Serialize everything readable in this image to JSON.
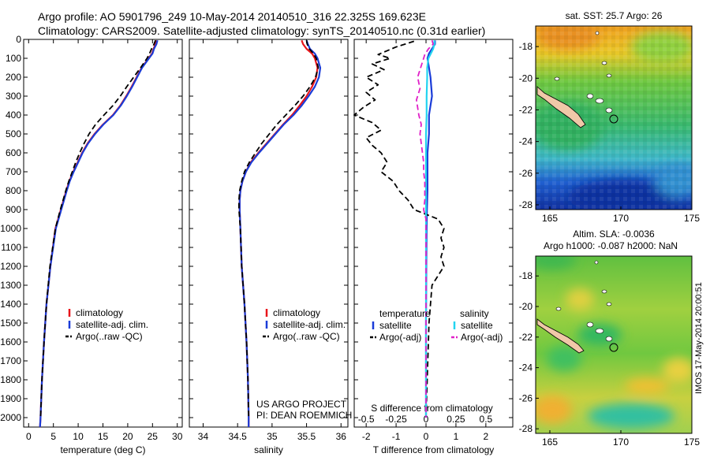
{
  "header": {
    "line1": "Argo profile: AO 5901796_249 10-May-2014 20140510_316 22.325S 169.623E",
    "line2": "Climatology: CARS2009. Satellite-adjusted climatology: synTS_20140510.nc (0.31d earlier)"
  },
  "depth_ticks": [
    "0",
    "100",
    "200",
    "300",
    "400",
    "500",
    "600",
    "700",
    "800",
    "900",
    "1000",
    "1100",
    "1200",
    "1300",
    "1400",
    "1500",
    "1600",
    "1700",
    "1800",
    "1900",
    "2000"
  ],
  "colors": {
    "climatology": "#e8141a",
    "satellite": "#1a3cd8",
    "argo": "#000000",
    "sat_salinity": "#22d4f0",
    "argo_salinity": "#e020c8"
  },
  "chart_data": [
    {
      "type": "line",
      "id": "temperature",
      "xlabel": "temperature (deg C)",
      "ylabel": "depth",
      "xlim": [
        -1,
        31
      ],
      "ylim": [
        2050,
        0
      ],
      "x_ticks": [
        "0",
        "5",
        "10",
        "15",
        "20",
        "25",
        "30"
      ],
      "legend": [
        "climatology",
        "satellite-adj. clim.",
        "Argo(..raw -QC)"
      ],
      "series": [
        {
          "name": "climatology",
          "style": "climatology",
          "depth": [
            5,
            25,
            50,
            75,
            100,
            150,
            200,
            250,
            300,
            350,
            400,
            450,
            500,
            550,
            600,
            650,
            700,
            750,
            800,
            900,
            1000,
            1200,
            1400,
            1600,
            1800,
            2000,
            2050
          ],
          "values": [
            25.8,
            25.6,
            25.2,
            24.9,
            24.2,
            22.8,
            21.8,
            20.8,
            19.7,
            18.5,
            17.0,
            15.0,
            13.3,
            11.9,
            10.8,
            9.9,
            9.0,
            8.2,
            7.6,
            6.5,
            5.4,
            4.4,
            3.6,
            3.1,
            2.7,
            2.4,
            2.3
          ]
        },
        {
          "name": "satellite-adj. clim.",
          "style": "satellite",
          "depth": [
            5,
            25,
            50,
            75,
            100,
            150,
            200,
            250,
            300,
            350,
            400,
            450,
            500,
            550,
            600,
            650,
            700,
            750,
            800,
            900,
            1000,
            1200,
            1400,
            1600,
            1800,
            2000,
            2050
          ],
          "values": [
            26.0,
            25.8,
            25.3,
            25.0,
            24.3,
            22.9,
            21.9,
            20.9,
            19.8,
            18.6,
            17.1,
            15.1,
            13.4,
            12.0,
            10.9,
            10.0,
            9.1,
            8.3,
            7.7,
            6.6,
            5.5,
            4.4,
            3.6,
            3.1,
            2.7,
            2.4,
            2.3
          ]
        },
        {
          "name": "Argo(..raw -QC)",
          "style": "argo",
          "depth": [
            5,
            25,
            50,
            75,
            100,
            150,
            200,
            250,
            300,
            350,
            400,
            450,
            500,
            550,
            600,
            650,
            700,
            750,
            800,
            900,
            1000,
            1200,
            1400,
            1600,
            1800,
            2000
          ],
          "values": [
            25.6,
            25.3,
            24.8,
            24.4,
            23.9,
            22.6,
            21.2,
            19.8,
            18.5,
            17.0,
            15.2,
            13.5,
            12.2,
            11.2,
            10.3,
            9.5,
            8.8,
            8.1,
            7.5,
            6.4,
            5.4,
            4.3,
            3.6,
            3.1,
            2.7,
            2.4
          ]
        }
      ]
    },
    {
      "type": "line",
      "id": "salinity",
      "xlabel": "salinity",
      "ylabel": "depth",
      "xlim": [
        33.8,
        36.1
      ],
      "ylim": [
        2050,
        0
      ],
      "x_ticks": [
        "34",
        "34.5",
        "35",
        "35.5",
        "36"
      ],
      "legend": [
        "climatology",
        "satellite-adj. clim.",
        "Argo(..raw -QC)"
      ],
      "annotations": [
        "US ARGO PROJECT",
        "PI: DEAN ROEMMICH"
      ],
      "series": [
        {
          "name": "climatology",
          "style": "climatology",
          "depth": [
            5,
            25,
            50,
            75,
            100,
            150,
            200,
            250,
            300,
            350,
            400,
            450,
            500,
            550,
            600,
            650,
            700,
            750,
            800,
            850,
            900,
            1000,
            1200,
            1400,
            1600,
            1800,
            2000,
            2050
          ],
          "values": [
            35.43,
            35.45,
            35.5,
            35.58,
            35.62,
            35.66,
            35.64,
            35.58,
            35.5,
            35.4,
            35.29,
            35.16,
            35.04,
            34.92,
            34.8,
            34.69,
            34.62,
            34.57,
            34.54,
            34.53,
            34.53,
            34.54,
            34.56,
            34.6,
            34.63,
            34.65,
            34.66,
            34.66
          ]
        },
        {
          "name": "satellite-adj. clim.",
          "style": "satellite",
          "depth": [
            5,
            25,
            50,
            75,
            100,
            150,
            200,
            250,
            300,
            350,
            400,
            450,
            500,
            550,
            600,
            650,
            700,
            750,
            800,
            850,
            900,
            1000,
            1200,
            1400,
            1600,
            1800,
            2000,
            2050
          ],
          "values": [
            35.5,
            35.52,
            35.55,
            35.62,
            35.66,
            35.7,
            35.68,
            35.62,
            35.53,
            35.43,
            35.31,
            35.17,
            35.05,
            34.93,
            34.81,
            34.7,
            34.62,
            34.57,
            34.54,
            34.53,
            34.53,
            34.54,
            34.56,
            34.6,
            34.63,
            34.65,
            34.66,
            34.66
          ]
        },
        {
          "name": "Argo(..raw -QC)",
          "style": "argo",
          "depth": [
            5,
            25,
            50,
            75,
            100,
            150,
            200,
            250,
            300,
            350,
            400,
            450,
            500,
            550,
            600,
            650,
            700,
            750,
            800,
            850,
            900,
            1000,
            1200,
            1400,
            1600,
            1800,
            2000
          ],
          "values": [
            35.5,
            35.51,
            35.54,
            35.6,
            35.64,
            35.67,
            35.63,
            35.55,
            35.45,
            35.33,
            35.2,
            35.07,
            34.96,
            34.85,
            34.76,
            34.67,
            34.6,
            34.56,
            34.53,
            34.52,
            34.52,
            34.54,
            34.56,
            34.6,
            34.63,
            34.65,
            34.66
          ]
        }
      ]
    },
    {
      "type": "line",
      "id": "difference",
      "xlabel": "T difference from climatology",
      "xlabel_top": "S difference from climatology",
      "ylabel": "depth",
      "xlim": [
        -2.4,
        2.9
      ],
      "ylim": [
        2050,
        0
      ],
      "x_ticks": [
        "-2",
        "-1",
        "0",
        "1",
        "2"
      ],
      "x_ticks_top": [
        "-0.5",
        "-0.25",
        "0",
        "0.25",
        "0.5"
      ],
      "legend_headers": [
        "temperature",
        "salinity"
      ],
      "legend": [
        "satellite",
        "Argo(-adj)",
        "satellite",
        "Argo(-adj)"
      ],
      "series": [
        {
          "name": "T satellite",
          "style": "satellite",
          "depth": [
            5,
            25,
            50,
            75,
            100,
            150,
            200,
            300,
            400,
            500,
            600,
            700,
            800,
            900,
            1000,
            1200,
            1500,
            2000
          ],
          "values": [
            0.3,
            0.3,
            0.2,
            0.1,
            0.05,
            0.1,
            0.15,
            0.2,
            0.1,
            0.1,
            0.05,
            0.05,
            0.05,
            0.03,
            0.02,
            0.01,
            0.0,
            0.0
          ]
        },
        {
          "name": "T Argo(-adj)",
          "style": "argo",
          "depth": [
            10,
            25,
            40,
            60,
            80,
            100,
            130,
            160,
            200,
            240,
            280,
            320,
            360,
            400,
            440,
            480,
            520,
            560,
            600,
            650,
            700,
            750,
            800,
            850,
            900,
            950,
            1000,
            1050,
            1100,
            1150,
            1200,
            1300,
            1500,
            2000
          ],
          "values": [
            -0.4,
            -0.7,
            -1.0,
            -1.3,
            -1.6,
            -1.2,
            -1.8,
            -1.4,
            -2.0,
            -1.6,
            -2.0,
            -1.7,
            -2.1,
            -2.4,
            -1.8,
            -1.5,
            -2.0,
            -1.8,
            -1.5,
            -1.3,
            -1.5,
            -1.1,
            -0.9,
            -0.6,
            -0.4,
            0.4,
            0.6,
            0.5,
            0.6,
            0.5,
            0.6,
            0.2,
            0.1,
            0.0
          ]
        },
        {
          "name": "S satellite",
          "style": "sat_salinity",
          "depth": [
            5,
            25,
            50,
            75,
            100,
            150,
            200,
            300,
            400,
            500,
            600,
            700,
            800,
            900,
            1000,
            1500,
            2000
          ],
          "values": [
            0.07,
            0.07,
            0.06,
            0.04,
            0.02,
            0.01,
            0.01,
            0.005,
            0.005,
            0.0,
            0.0,
            0.0,
            0.0,
            0.0,
            0.0,
            0.0,
            0.0
          ]
        },
        {
          "name": "S Argo(-adj)",
          "style": "argo_salinity",
          "depth": [
            5,
            25,
            50,
            80,
            120,
            160,
            200,
            260,
            320,
            400,
            450,
            500,
            550,
            600,
            650,
            700,
            750,
            800,
            850,
            900,
            950,
            1000,
            1200,
            1500,
            2000
          ],
          "values": [
            0.05,
            0.06,
            0.02,
            -0.01,
            -0.03,
            -0.05,
            -0.07,
            -0.05,
            -0.08,
            -0.06,
            -0.04,
            -0.05,
            -0.04,
            -0.03,
            -0.02,
            -0.02,
            -0.01,
            -0.01,
            -0.01,
            -0.02,
            0.0,
            0.0,
            0.0,
            0.0,
            0.0
          ]
        }
      ]
    },
    {
      "type": "heatmap",
      "id": "sst_map",
      "title": "sat. SST: 25.7  Argo: 26",
      "x_ticks": [
        "165",
        "170",
        "175"
      ],
      "y_ticks": [
        "-18",
        "-20",
        "-22",
        "-24",
        "-26",
        "-28"
      ],
      "xlim": [
        164,
        175
      ],
      "ylim": [
        -28.3,
        -16.7
      ],
      "float_position": [
        169.623,
        -22.325
      ]
    },
    {
      "type": "heatmap",
      "id": "sla_map",
      "title": "Altim. SLA: -0.0036",
      "subtitle": "Argo h1000: -0.087 h2000: NaN",
      "x_ticks": [
        "165",
        "170",
        "175"
      ],
      "y_ticks": [
        "-18",
        "-20",
        "-22",
        "-24",
        "-26",
        "-28"
      ],
      "xlim": [
        164,
        175
      ],
      "ylim": [
        -28.3,
        -16.7
      ],
      "float_position": [
        169.623,
        -22.325
      ]
    }
  ],
  "footer": {
    "stamp": "IMOS 17-May-2014 20:00:51"
  }
}
